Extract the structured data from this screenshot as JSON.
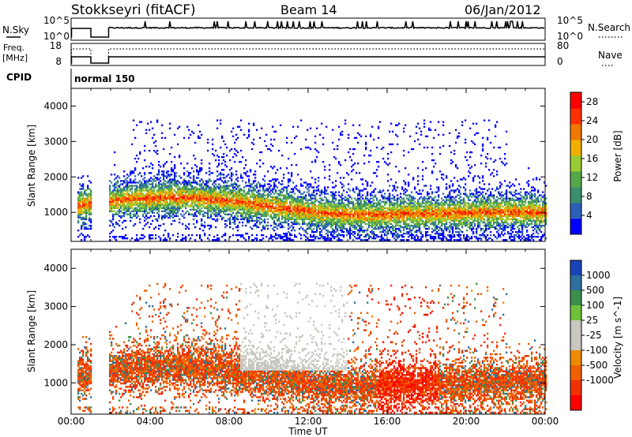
{
  "header": {
    "station": "Stokkseyri (fitACF)",
    "beam": "Beam 14",
    "date": "06/Jan/2012"
  },
  "top_panels": {
    "nsky_label": "N.Sky",
    "nsky_ticks": [
      "10^5",
      "10^0"
    ],
    "nsearch_label": "N.Search",
    "freq_label": "Freq.",
    "freq_unit": "[MHz]",
    "freq_ticks": [
      "18",
      "8"
    ],
    "nave_label": "Nave",
    "nave_ticks": [
      "80",
      "0"
    ],
    "cpid_label": "CPID",
    "cpid_value": "normal 150"
  },
  "colors": {
    "power_scale": [
      "#0000ff",
      "#2b5fb8",
      "#3a8f6f",
      "#55a84a",
      "#99cc33",
      "#f0b000",
      "#f07800",
      "#ff3000",
      "#ff0000"
    ],
    "velocity_scale": [
      "#1a44b8",
      "#2d6fa0",
      "#3b8f4d",
      "#6ec23b",
      "#c8c8c0",
      "#c8c8c0",
      "#f08a00",
      "#f06000",
      "#f03000",
      "#ff0000"
    ]
  },
  "chart_data": [
    {
      "type": "heatmap",
      "name": "power",
      "ylabel": "Slant Range [km]",
      "yticks": [
        "1000",
        "2000",
        "3000",
        "4000"
      ],
      "ylim": [
        180,
        4500
      ],
      "xlim": [
        0,
        24
      ],
      "colorbar_label": "Power [dB]",
      "colorbar_ticks": [
        "4",
        "8",
        "12",
        "16",
        "20",
        "24",
        "28"
      ],
      "colorbar_range": [
        0,
        30
      ],
      "data_gaps_hours": [
        [
          1.0,
          1.9
        ]
      ]
    },
    {
      "type": "heatmap",
      "name": "velocity",
      "ylabel": "Slant Range [km]",
      "yticks": [
        "1000",
        "2000",
        "3000",
        "4000"
      ],
      "ylim": [
        180,
        4500
      ],
      "xlim": [
        0,
        24
      ],
      "colorbar_label": "Velocity [m s^-1]",
      "colorbar_ticks": [
        "1000",
        "500",
        "100",
        "25",
        "-25",
        "-100",
        "-500",
        "-1000"
      ],
      "data_gaps_hours": [
        [
          1.0,
          1.9
        ]
      ]
    }
  ],
  "xaxis": {
    "ticks": [
      "00:00",
      "04:00",
      "08:00",
      "12:00",
      "16:00",
      "20:00",
      "00:00"
    ],
    "label": "Time UT"
  }
}
